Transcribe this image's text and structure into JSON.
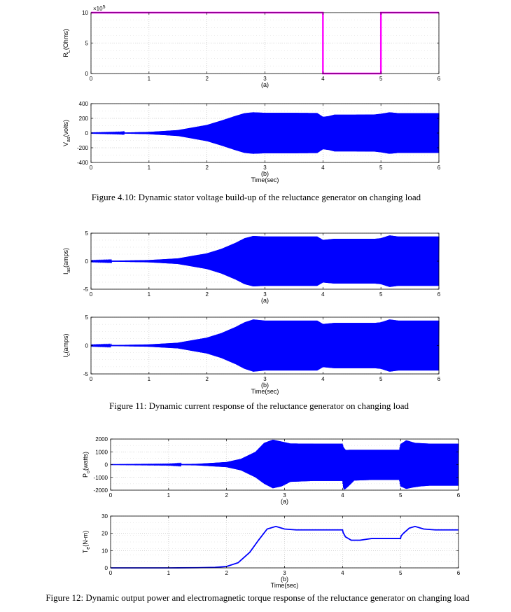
{
  "figures": [
    {
      "caption": "Figure 4.10: Dynamic stator voltage build-up of the reluctance generator on changing load"
    },
    {
      "caption": "Figure 11: Dynamic current response of the reluctance generator on changing load"
    },
    {
      "caption": "Figure 12: Dynamic output power and electromagnetic torque response of the reluctance generator on changing load"
    }
  ],
  "chart_data": [
    {
      "id": "fig410a",
      "type": "line",
      "panel_label": "(a)",
      "ylabel_main": "R",
      "ylabel_sub": "L",
      "ylabel_rest": "(Ohms)",
      "y_exponent_label": "×10",
      "y_exponent_power": "5",
      "xlim": [
        0,
        6
      ],
      "ylim": [
        0,
        10
      ],
      "xticks": [
        "0",
        "1",
        "2",
        "3",
        "4",
        "5",
        "6"
      ],
      "yticks": [
        "0",
        "5",
        "10"
      ],
      "series": [
        {
          "x": [
            0,
            4,
            4,
            5,
            5,
            6
          ],
          "y": [
            10,
            10,
            0,
            0,
            10,
            10
          ],
          "color": "#ff00ff"
        }
      ]
    },
    {
      "id": "fig410b",
      "type": "area",
      "panel_label": "(b)",
      "xlabel": "Time(sec)",
      "ylabel_main": "V",
      "ylabel_sub": "as",
      "ylabel_rest": "(volts)",
      "xlim": [
        0,
        6
      ],
      "ylim": [
        -400,
        400
      ],
      "xticks": [
        "0",
        "1",
        "2",
        "3",
        "4",
        "5",
        "6"
      ],
      "yticks": [
        "-400",
        "-200",
        "0",
        "200",
        "400"
      ],
      "series": [
        {
          "color": "#0000ff",
          "envelope_t": [
            0,
            0.5,
            1,
            1.5,
            2,
            2.25,
            2.5,
            2.65,
            2.8,
            3,
            3.5,
            3.9,
            4,
            4.1,
            4.2,
            4.5,
            4.9,
            5,
            5.15,
            5.3,
            5.5,
            6
          ],
          "envelope_v": [
            2,
            5,
            15,
            40,
            110,
            170,
            235,
            270,
            282,
            275,
            275,
            272,
            220,
            230,
            250,
            250,
            253,
            262,
            282,
            270,
            270,
            270
          ]
        }
      ]
    },
    {
      "id": "fig11a",
      "type": "area",
      "panel_label": "(a)",
      "ylabel_main": "I",
      "ylabel_sub": "as",
      "ylabel_rest": "(amps)",
      "xlim": [
        0,
        6
      ],
      "ylim": [
        -5,
        5
      ],
      "xticks": [
        "0",
        "1",
        "2",
        "3",
        "4",
        "5",
        "6"
      ],
      "yticks": [
        "-5",
        "0",
        "5"
      ],
      "series": [
        {
          "color": "#0000ff",
          "envelope_t": [
            0,
            0.5,
            1,
            1.5,
            2,
            2.25,
            2.5,
            2.65,
            2.8,
            3,
            3.5,
            3.9,
            4,
            4.1,
            4.2,
            4.5,
            4.9,
            5,
            5.15,
            5.3,
            5.5,
            6
          ],
          "envelope_v": [
            0.05,
            0.1,
            0.2,
            0.5,
            1.4,
            2.2,
            3.3,
            4.1,
            4.5,
            4.4,
            4.4,
            4.4,
            3.8,
            3.9,
            4.0,
            4.0,
            4.0,
            4.1,
            4.6,
            4.4,
            4.4,
            4.4
          ]
        }
      ]
    },
    {
      "id": "fig11b",
      "type": "area",
      "panel_label": "(b)",
      "xlabel": "Time(sec)",
      "ylabel_main": "I",
      "ylabel_sub": "c",
      "ylabel_rest": "(amps)",
      "xlim": [
        0,
        6
      ],
      "ylim": [
        -5,
        5
      ],
      "xticks": [
        "0",
        "1",
        "2",
        "3",
        "4",
        "5",
        "6"
      ],
      "yticks": [
        "-5",
        "0",
        "5"
      ],
      "series": [
        {
          "color": "#0000ff",
          "envelope_t": [
            0,
            0.5,
            1,
            1.5,
            2,
            2.25,
            2.5,
            2.65,
            2.8,
            3,
            3.5,
            3.9,
            4,
            4.1,
            4.2,
            4.5,
            4.9,
            5,
            5.15,
            5.3,
            5.5,
            6
          ],
          "envelope_v": [
            0.05,
            0.1,
            0.2,
            0.5,
            1.4,
            2.2,
            3.3,
            4.1,
            4.6,
            4.4,
            4.4,
            4.4,
            3.8,
            3.9,
            4.0,
            4.0,
            4.0,
            4.1,
            4.6,
            4.4,
            4.4,
            4.4
          ]
        }
      ]
    },
    {
      "id": "fig12a",
      "type": "area",
      "panel_label": "(a)",
      "ylabel_main": "P",
      "ylabel_sub": "o",
      "ylabel_rest": "(watts)",
      "xlim": [
        0,
        6
      ],
      "ylim": [
        -2000,
        2000
      ],
      "xticks": [
        "0",
        "1",
        "2",
        "3",
        "4",
        "5",
        "6"
      ],
      "yticks": [
        "-2000",
        "-1000",
        "0",
        "1000",
        "2000"
      ],
      "series": [
        {
          "color": "#0000ff",
          "upper_t": [
            0,
            1,
            1.5,
            2,
            2.25,
            2.5,
            2.65,
            2.8,
            2.95,
            3.1,
            3.5,
            4,
            4.01,
            4.05,
            4.2,
            4.5,
            4.98,
            5,
            5.1,
            5.25,
            5.5,
            6
          ],
          "upper_v": [
            5,
            20,
            60,
            200,
            450,
            1000,
            1700,
            1950,
            1800,
            1650,
            1640,
            1640,
            1400,
            1150,
            1160,
            1160,
            1160,
            1600,
            1900,
            1700,
            1640,
            1640
          ],
          "lower_t": [
            0,
            1,
            1.5,
            2,
            2.25,
            2.5,
            2.65,
            2.8,
            2.95,
            3.1,
            3.5,
            4,
            4.02,
            4.05,
            4.1,
            4.2,
            4.5,
            4.98,
            5,
            5.1,
            5.2,
            5.35,
            5.5,
            6
          ],
          "lower_v": [
            -5,
            -20,
            -60,
            -200,
            -450,
            -1000,
            -1500,
            -1850,
            -1700,
            -1350,
            -1280,
            -1280,
            -1950,
            -1900,
            -1700,
            -1250,
            -1200,
            -1200,
            -1700,
            -1900,
            -1800,
            -1700,
            -1650,
            -1650
          ]
        }
      ]
    },
    {
      "id": "fig12b",
      "type": "line",
      "panel_label": "(b)",
      "xlabel": "Time(sec)",
      "ylabel_main": "T",
      "ylabel_sub": "e",
      "ylabel_rest": "(N-m)",
      "xlim": [
        0,
        6
      ],
      "ylim": [
        0,
        30
      ],
      "xticks": [
        "0",
        "1",
        "2",
        "3",
        "4",
        "5",
        "6"
      ],
      "yticks": [
        "0",
        "10",
        "20",
        "30"
      ],
      "series": [
        {
          "color": "#0000ff",
          "x": [
            0,
            1,
            1.5,
            1.8,
            2,
            2.2,
            2.4,
            2.55,
            2.7,
            2.85,
            3,
            3.2,
            3.5,
            4,
            4.01,
            4.05,
            4.15,
            4.3,
            4.5,
            4.8,
            5,
            5.01,
            5.05,
            5.15,
            5.25,
            5.4,
            5.6,
            6
          ],
          "y": [
            0,
            0,
            0.1,
            0.3,
            0.8,
            3,
            9,
            16,
            22.5,
            24,
            22.5,
            22,
            22,
            22,
            20.5,
            18,
            16,
            16,
            17,
            17,
            17,
            18.5,
            20,
            23,
            24,
            22.5,
            22,
            22
          ]
        }
      ]
    }
  ]
}
